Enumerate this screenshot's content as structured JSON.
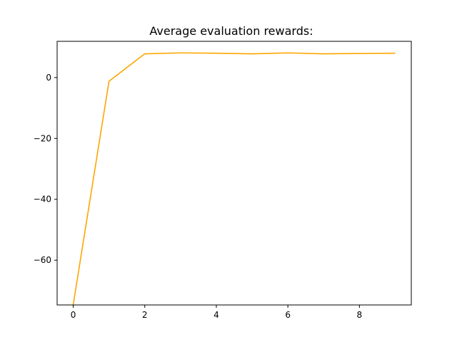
{
  "chart_data": {
    "type": "line",
    "title": "Average evaluation rewards:",
    "xlabel": "",
    "ylabel": "",
    "xlim": [
      -0.45,
      9.45
    ],
    "ylim": [
      -74.7,
      11.9
    ],
    "xticks": [
      0,
      2,
      4,
      6,
      8
    ],
    "xtick_labels": [
      "0",
      "2",
      "4",
      "6",
      "8"
    ],
    "yticks": [
      0,
      -20,
      -40,
      -60
    ],
    "ytick_labels": [
      "0",
      "−20",
      "−40",
      "−60"
    ],
    "grid": false,
    "legend": "none",
    "series": [
      {
        "color": "#FFA500",
        "x": [
          0,
          1,
          2,
          3,
          4,
          5,
          6,
          7,
          8,
          9
        ],
        "y": [
          -74.6,
          -1.2,
          7.8,
          8.1,
          8.0,
          7.8,
          8.1,
          7.8,
          7.9,
          8.0
        ]
      }
    ]
  }
}
